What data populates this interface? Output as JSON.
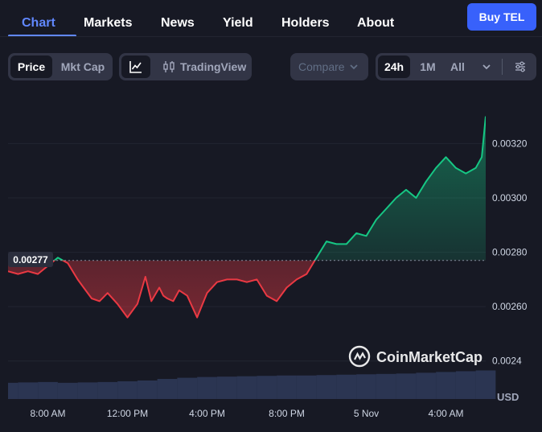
{
  "nav": {
    "tabs": [
      {
        "label": "Chart",
        "active": true
      },
      {
        "label": "Markets",
        "active": false
      },
      {
        "label": "News",
        "active": false
      },
      {
        "label": "Yield",
        "active": false
      },
      {
        "label": "Holders",
        "active": false
      },
      {
        "label": "About",
        "active": false
      }
    ],
    "buy_label": "Buy TEL"
  },
  "toolbar": {
    "metric_tabs": [
      {
        "label": "Price",
        "active": true
      },
      {
        "label": "Mkt Cap",
        "active": false
      }
    ],
    "chart_style": {
      "tradingview_label": "TradingView"
    },
    "compare_placeholder": "Compare",
    "ranges": [
      {
        "label": "24h",
        "active": true
      },
      {
        "label": "1M",
        "active": false
      },
      {
        "label": "All",
        "active": false
      }
    ],
    "icons": [
      "line-chart-icon",
      "candlestick-icon",
      "chevron-down-icon",
      "settings-sliders-icon"
    ]
  },
  "colors": {
    "up": "#16c784",
    "down": "#ea3943",
    "accent": "#6188ff",
    "buy": "#3861fb"
  },
  "chart_data": {
    "type": "line",
    "reference_value": 0.00277,
    "reference_label": "0.00277",
    "x_ticks": [
      "8:00 AM",
      "12:00 PM",
      "4:00 PM",
      "8:00 PM",
      "5 Nov",
      "4:00 AM"
    ],
    "y_ticks": [
      "0.00320",
      "0.00300",
      "0.00280",
      "0.00260",
      "0.0024"
    ],
    "y_tick_values": [
      0.0032,
      0.003,
      0.0028,
      0.0026,
      0.0024
    ],
    "currency_label": "USD",
    "watermark": "CoinMarketCap",
    "grid": true,
    "ylim": [
      0.00226,
      0.00337
    ],
    "series": [
      {
        "x": [
          0,
          0.5,
          1,
          1.5,
          2,
          2.5,
          3,
          3.5,
          3.8,
          4.2,
          4.6,
          5,
          5.5,
          6,
          6.5,
          6.9,
          7.2,
          7.6,
          7.8,
          8,
          8.3,
          8.6,
          9,
          9.5,
          10,
          10.5,
          11,
          11.5,
          12,
          12.5,
          13,
          13.5,
          14,
          14.5,
          15,
          15.5,
          16,
          16.5,
          17,
          17.5,
          18,
          18.5,
          19,
          19.5,
          20,
          20.5,
          21,
          21.5,
          22,
          22.5,
          23,
          23.5,
          23.8,
          24
        ],
        "y": [
          0.00273,
          0.00272,
          0.00273,
          0.00272,
          0.00275,
          0.00278,
          0.00276,
          0.0027,
          0.00267,
          0.00263,
          0.00262,
          0.00265,
          0.00261,
          0.00256,
          0.00261,
          0.00271,
          0.00262,
          0.00267,
          0.00264,
          0.00263,
          0.00262,
          0.00266,
          0.00264,
          0.00256,
          0.00265,
          0.00269,
          0.0027,
          0.0027,
          0.00269,
          0.0027,
          0.00264,
          0.00262,
          0.00267,
          0.0027,
          0.00272,
          0.00278,
          0.00284,
          0.00283,
          0.00283,
          0.00287,
          0.00286,
          0.00292,
          0.00296,
          0.003,
          0.00303,
          0.003,
          0.00306,
          0.00311,
          0.00315,
          0.00311,
          0.00309,
          0.00311,
          0.00315,
          0.0033
        ]
      }
    ],
    "volume": {
      "x": [
        0,
        1,
        2,
        3,
        4,
        5,
        6,
        7,
        8,
        9,
        10,
        11,
        12,
        13,
        14,
        15,
        16,
        17,
        18,
        19,
        20,
        21,
        22,
        23,
        24
      ],
      "values": [
        0.42,
        0.43,
        0.44,
        0.42,
        0.43,
        0.44,
        0.46,
        0.48,
        0.52,
        0.55,
        0.57,
        0.58,
        0.59,
        0.6,
        0.61,
        0.61,
        0.62,
        0.63,
        0.64,
        0.65,
        0.66,
        0.68,
        0.7,
        0.72,
        0.74
      ]
    }
  }
}
